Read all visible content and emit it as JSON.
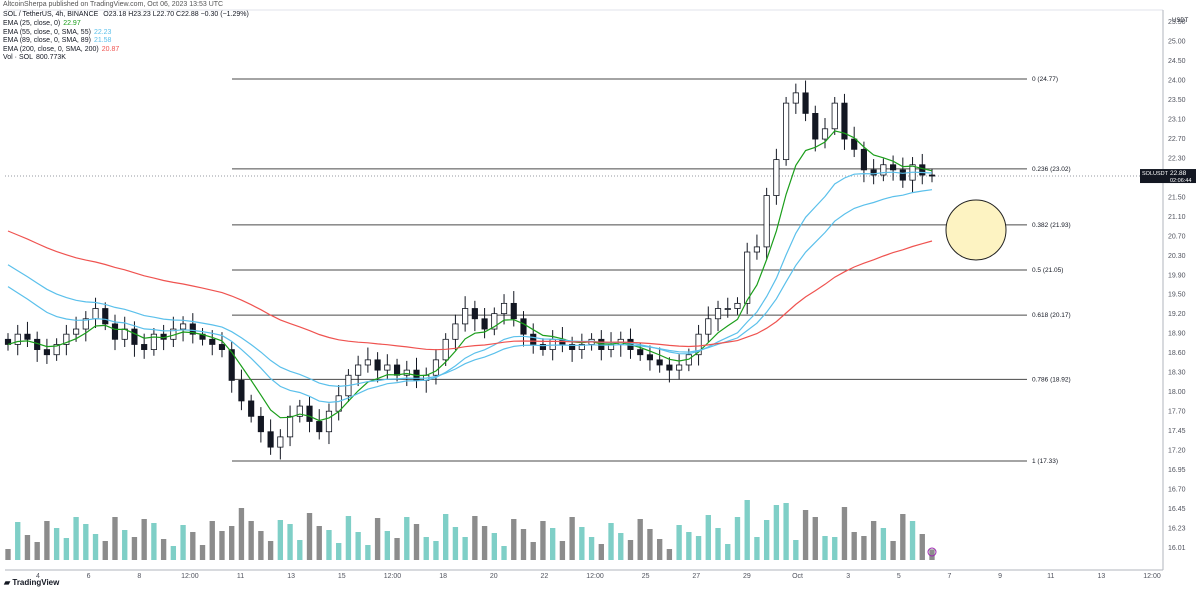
{
  "published": "AltcoinSherpa published on TradingView.com, Oct 06, 2023 13:53 UTC",
  "symbol_line": {
    "symbol": "SOL / TetherUS, 4h, BINANCE",
    "ohlc": "O23.18  H23.23  L22.70  C22.88  −0.30 (−1.29%)"
  },
  "indicators": [
    {
      "label": "EMA (25, close, 0)",
      "value": "22.97",
      "color": "#1b9e1b"
    },
    {
      "label": "EMA (55, close, 0, SMA, 55)",
      "value": "22.23",
      "color": "#5bc0eb"
    },
    {
      "label": "EMA (89, close, 0, SMA, 89)",
      "value": "21.58",
      "color": "#5bc0eb"
    },
    {
      "label": "EMA (200, close, 0, SMA, 200)",
      "value": "20.87",
      "color": "#ef5350"
    },
    {
      "label": "Vol · SOL",
      "value": "800.773K",
      "color": "#131722"
    }
  ],
  "price_tag": {
    "symbol": "SOLUSDT",
    "price": "22.88",
    "countdown": "02:06:44"
  },
  "branding": "TradingView",
  "axis_unit": "USDT",
  "chart_data": {
    "type": "candlestick",
    "symbol": "SOLUSDT",
    "timeframe": "4h",
    "x_tick_labels": [
      "4",
      "6",
      "8",
      "12:00",
      "11",
      "13",
      "15",
      "12:00",
      "18",
      "20",
      "22",
      "12:00",
      "25",
      "27",
      "29",
      "Oct",
      "3",
      "5",
      "7",
      "9",
      "11",
      "13",
      "12:00"
    ],
    "y_tick_labels": [
      "25.50",
      "25.00",
      "24.50",
      "24.00",
      "23.50",
      "23.10",
      "22.70",
      "22.30",
      "21.90",
      "21.50",
      "21.10",
      "20.70",
      "20.30",
      "19.90",
      "19.50",
      "19.20",
      "18.90",
      "18.60",
      "18.30",
      "18.00",
      "17.70",
      "17.45",
      "17.20",
      "16.95",
      "16.70",
      "16.45",
      "16.23",
      "16.01"
    ],
    "fib_levels": [
      {
        "ratio": "0",
        "price": 24.77,
        "label": "0 (24.77)"
      },
      {
        "ratio": "0.236",
        "price": 23.02,
        "label": "0.236 (23.02)"
      },
      {
        "ratio": "0.382",
        "price": 21.93,
        "label": "0.382 (21.93)"
      },
      {
        "ratio": "0.5",
        "price": 21.05,
        "label": "0.5 (21.05)"
      },
      {
        "ratio": "0.618",
        "price": 20.17,
        "label": "0.618 (20.17)"
      },
      {
        "ratio": "0.786",
        "price": 18.92,
        "label": "0.786 (18.92)"
      },
      {
        "ratio": "1",
        "price": 17.33,
        "label": "1 (17.33)"
      }
    ],
    "close_approx": [
      19.6,
      19.8,
      19.7,
      19.5,
      19.4,
      19.6,
      19.8,
      19.9,
      20.1,
      20.3,
      20.0,
      19.7,
      19.9,
      19.6,
      19.5,
      19.8,
      19.7,
      19.9,
      20.0,
      19.8,
      19.7,
      19.6,
      19.5,
      18.9,
      18.5,
      18.2,
      17.9,
      17.6,
      17.8,
      18.2,
      18.4,
      18.1,
      17.9,
      18.3,
      18.6,
      19.0,
      19.2,
      19.3,
      19.1,
      19.2,
      19.0,
      19.1,
      18.9,
      19.0,
      19.3,
      19.7,
      20.0,
      20.3,
      20.1,
      19.9,
      20.2,
      20.4,
      20.1,
      19.8,
      19.6,
      19.5,
      19.7,
      19.6,
      19.5,
      19.6,
      19.7,
      19.5,
      19.6,
      19.7,
      19.5,
      19.4,
      19.3,
      19.2,
      19.1,
      19.2,
      19.4,
      19.8,
      20.1,
      20.3,
      20.3,
      20.4,
      21.4,
      21.5,
      22.5,
      23.2,
      24.3,
      24.5,
      24.1,
      23.6,
      23.8,
      24.3,
      23.6,
      23.4,
      23.0,
      22.9,
      23.1,
      23.0,
      22.8,
      23.1,
      22.9,
      22.88
    ],
    "ylim": [
      15.8,
      25.8
    ],
    "series": [
      {
        "name": "EMA (25, close, 0)",
        "color": "#1b9e1b"
      },
      {
        "name": "EMA (55, close, 0, SMA, 55)",
        "color": "#5bc0eb"
      },
      {
        "name": "EMA (89, close, 0, SMA, 89)",
        "color": "#5bc0eb"
      },
      {
        "name": "EMA (200, close, 0, SMA, 200)",
        "color": "#ef5350"
      }
    ],
    "annotation": "highlight circle near 0.382–0.5 retracement",
    "grid": false,
    "colors": {
      "up": "#ffffff",
      "down": "#131722",
      "vol_up": "#7fcfc7",
      "vol_down": "#8c8c8c",
      "highlight": "#fdf3c2"
    }
  }
}
